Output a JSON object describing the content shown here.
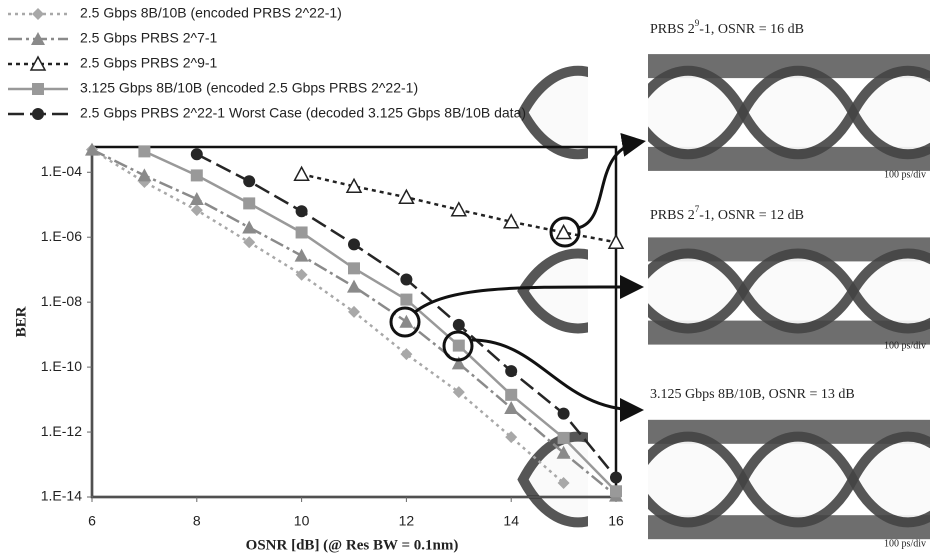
{
  "chart_data": {
    "type": "line",
    "x_label": "OSNR [dB] (@ Res BW = 0.1nm)",
    "y_label": "BER",
    "x": [
      6,
      7,
      8,
      9,
      10,
      11,
      12,
      13,
      14,
      15,
      16
    ],
    "xlim": [
      6,
      16
    ],
    "xticks": [
      6,
      8,
      10,
      12,
      14,
      16
    ],
    "ylim": [
      1e-14,
      0.0006
    ],
    "ylog": true,
    "yticks": [
      {
        "value": 1e-14,
        "label": "1.E-14"
      },
      {
        "value": 1e-12,
        "label": "1.E-12"
      },
      {
        "value": 1e-10,
        "label": "1.E-10"
      },
      {
        "value": 1e-08,
        "label": "1.E-08"
      },
      {
        "value": 1e-06,
        "label": "1.E-06"
      },
      {
        "value": 0.0001,
        "label": "1.E-04"
      }
    ],
    "series": [
      {
        "name": "2.5 Gbps 8B/10B (encoded PRBS 2^22-1)",
        "color": "#a8a8a8",
        "marker": "diamond",
        "dash": "3 4",
        "values": [
          0.0005,
          5e-05,
          6.8e-06,
          7e-07,
          7e-08,
          5e-09,
          2.5e-10,
          1.7e-11,
          7e-13,
          2.7e-14,
          null
        ]
      },
      {
        "name": "2.5 Gbps PRBS 2^7-1",
        "color": "#8a8a8a",
        "marker": "triangle",
        "dash": "14 4 3 4",
        "values": [
          0.0005,
          8e-05,
          1.5e-05,
          2e-06,
          2.7e-07,
          3e-08,
          2.5e-09,
          1.3e-10,
          5.5e-12,
          2.3e-13,
          1.1e-14
        ]
      },
      {
        "name": "2.5 Gbps PRBS 2^9-1",
        "color": "#222222",
        "marker": "open-triangle",
        "dash": "4 4",
        "values": [
          null,
          null,
          null,
          null,
          8.7e-05,
          3.7e-05,
          1.7e-05,
          7e-06,
          3e-06,
          1.4e-06,
          7e-07
        ]
      },
      {
        "name": "3.125 Gbps 8B/10B (encoded 2.5 Gbps PRBS 2^22-1)",
        "color": "#999999",
        "marker": "square",
        "dash": "",
        "values": [
          null,
          0.00044,
          8e-05,
          1.1e-05,
          1.4e-06,
          1.1e-07,
          1.2e-08,
          4.6e-10,
          1.4e-11,
          6.6e-13,
          1.5e-14
        ]
      },
      {
        "name": "2.5 Gbps PRBS 2^22-1 Worst Case (decoded 3.125 Gbps 8B/10B data)",
        "color": "#262626",
        "marker": "circle",
        "dash": "16 6",
        "values": [
          null,
          null,
          0.00036,
          5.3e-05,
          6.3e-06,
          6e-07,
          5e-08,
          2e-09,
          7.5e-11,
          3.7e-12,
          4e-14
        ]
      }
    ]
  },
  "insets": [
    {
      "title": {
        "prefix": "PRBS 2",
        "sup": "9",
        "suffix": "-1, OSNR = 16 dB"
      },
      "scale": "100 ps/div"
    },
    {
      "title": {
        "prefix": "PRBS 2",
        "sup": "7",
        "suffix": "-1, OSNR = 12 dB"
      },
      "scale": "100 ps/div"
    },
    {
      "title": {
        "prefix": "3.125 Gbps 8B/10B, OSNR = 13 dB",
        "sup": "",
        "suffix": ""
      },
      "scale": "100 ps/div"
    }
  ]
}
